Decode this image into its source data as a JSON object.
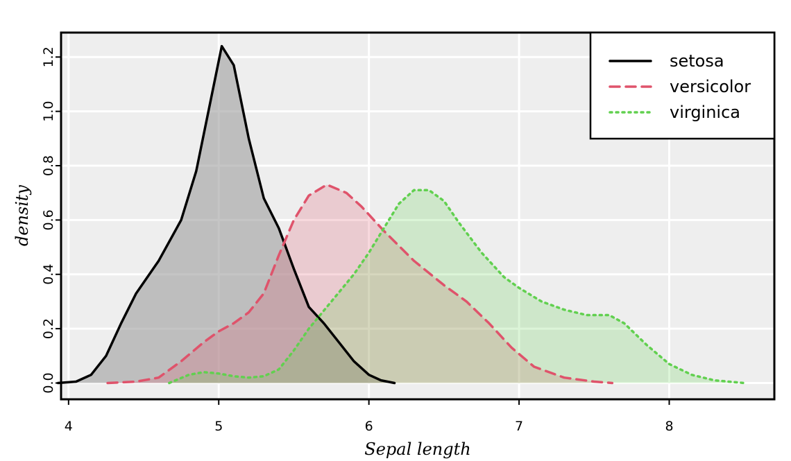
{
  "chart_data": {
    "type": "area",
    "xlabel": "Sepal length",
    "ylabel": "density",
    "xlim": [
      3.95,
      8.7
    ],
    "ylim": [
      -0.06,
      1.29
    ],
    "x_ticks": [
      4,
      5,
      6,
      7,
      8
    ],
    "y_ticks": [
      0.0,
      0.2,
      0.4,
      0.6,
      0.8,
      1.0,
      1.2
    ],
    "x_tick_labels": [
      "4",
      "5",
      "6",
      "7",
      "8"
    ],
    "y_tick_labels": [
      "0.0",
      "0.2",
      "0.4",
      "0.6",
      "0.8",
      "1.0",
      "1.2"
    ],
    "grid": true,
    "legend_position": "top-right",
    "series": [
      {
        "name": "setosa",
        "line_style": "solid",
        "line_color": "#000000",
        "fill_color": "#9e9e9e",
        "points": [
          [
            3.93,
            0.0
          ],
          [
            4.05,
            0.005
          ],
          [
            4.15,
            0.03
          ],
          [
            4.25,
            0.1
          ],
          [
            4.35,
            0.22
          ],
          [
            4.45,
            0.33
          ],
          [
            4.6,
            0.45
          ],
          [
            4.75,
            0.6
          ],
          [
            4.85,
            0.78
          ],
          [
            4.95,
            1.05
          ],
          [
            5.02,
            1.24
          ],
          [
            5.1,
            1.17
          ],
          [
            5.2,
            0.9
          ],
          [
            5.3,
            0.68
          ],
          [
            5.4,
            0.57
          ],
          [
            5.5,
            0.42
          ],
          [
            5.6,
            0.28
          ],
          [
            5.7,
            0.22
          ],
          [
            5.8,
            0.15
          ],
          [
            5.9,
            0.08
          ],
          [
            6.0,
            0.03
          ],
          [
            6.08,
            0.01
          ],
          [
            6.17,
            0.0
          ]
        ]
      },
      {
        "name": "versicolor",
        "line_style": "dashed",
        "line_color": "#df536b",
        "fill_color": "#df536b",
        "points": [
          [
            4.26,
            0.0
          ],
          [
            4.45,
            0.005
          ],
          [
            4.6,
            0.02
          ],
          [
            4.75,
            0.08
          ],
          [
            4.9,
            0.15
          ],
          [
            5.0,
            0.19
          ],
          [
            5.1,
            0.22
          ],
          [
            5.2,
            0.26
          ],
          [
            5.3,
            0.33
          ],
          [
            5.4,
            0.47
          ],
          [
            5.5,
            0.6
          ],
          [
            5.6,
            0.69
          ],
          [
            5.72,
            0.73
          ],
          [
            5.85,
            0.7
          ],
          [
            5.95,
            0.65
          ],
          [
            6.1,
            0.56
          ],
          [
            6.3,
            0.45
          ],
          [
            6.5,
            0.36
          ],
          [
            6.65,
            0.3
          ],
          [
            6.8,
            0.22
          ],
          [
            6.95,
            0.13
          ],
          [
            7.1,
            0.06
          ],
          [
            7.3,
            0.02
          ],
          [
            7.5,
            0.005
          ],
          [
            7.62,
            0.0
          ]
        ]
      },
      {
        "name": "virginica",
        "line_style": "dotted",
        "line_color": "#61d04f",
        "fill_color": "#61d04f",
        "points": [
          [
            4.67,
            0.0
          ],
          [
            4.8,
            0.03
          ],
          [
            4.9,
            0.04
          ],
          [
            5.0,
            0.035
          ],
          [
            5.1,
            0.025
          ],
          [
            5.2,
            0.02
          ],
          [
            5.3,
            0.025
          ],
          [
            5.4,
            0.05
          ],
          [
            5.5,
            0.12
          ],
          [
            5.6,
            0.2
          ],
          [
            5.75,
            0.3
          ],
          [
            5.9,
            0.4
          ],
          [
            6.0,
            0.48
          ],
          [
            6.1,
            0.57
          ],
          [
            6.2,
            0.66
          ],
          [
            6.3,
            0.71
          ],
          [
            6.4,
            0.71
          ],
          [
            6.5,
            0.67
          ],
          [
            6.6,
            0.59
          ],
          [
            6.75,
            0.48
          ],
          [
            6.9,
            0.39
          ],
          [
            7.0,
            0.35
          ],
          [
            7.15,
            0.3
          ],
          [
            7.3,
            0.27
          ],
          [
            7.45,
            0.25
          ],
          [
            7.6,
            0.25
          ],
          [
            7.7,
            0.22
          ],
          [
            7.85,
            0.14
          ],
          [
            8.0,
            0.07
          ],
          [
            8.15,
            0.03
          ],
          [
            8.3,
            0.01
          ],
          [
            8.5,
            0.0
          ]
        ]
      }
    ]
  }
}
